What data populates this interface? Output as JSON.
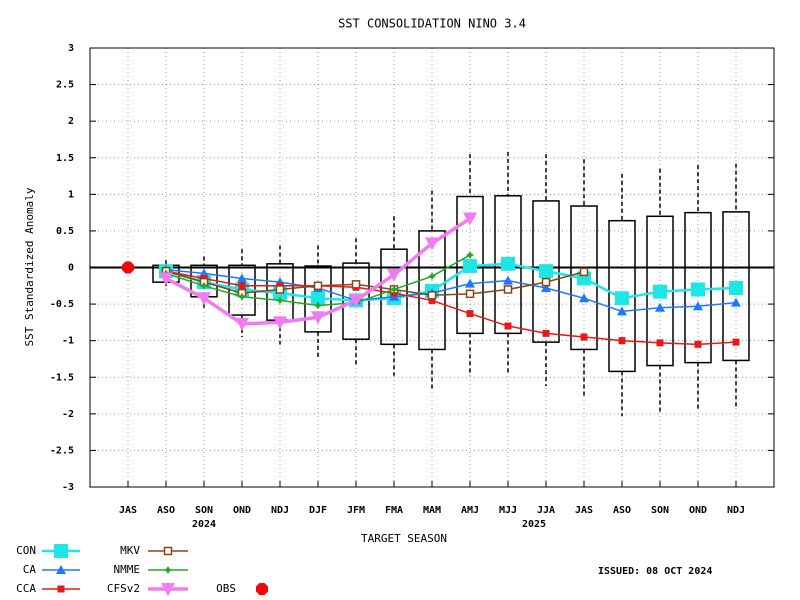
{
  "chart_data": {
    "type": "box_line",
    "title": "SST CONSOLIDATION NINO 3.4",
    "y_label": "SST Standardized Anomaly",
    "x_label": "TARGET SEASON",
    "year_labels": [
      "2024",
      "2025"
    ],
    "issued": "ISSUED: 08 OCT 2024",
    "categories": [
      "JAS",
      "ASO",
      "SON",
      "OND",
      "NDJ",
      "DJF",
      "JFM",
      "FMA",
      "MAM",
      "AMJ",
      "MJJ",
      "JJA",
      "JAS",
      "ASO",
      "SON",
      "OND",
      "NDJ"
    ],
    "ylim": [
      -3,
      3
    ],
    "yticks": [
      -3,
      -2.5,
      -2,
      -1.5,
      -1,
      -0.5,
      0,
      0.5,
      1,
      1.5,
      2,
      2.5,
      3
    ],
    "grid": true,
    "boxes": {
      "high": [
        null,
        0.1,
        0.15,
        0.25,
        0.3,
        0.3,
        0.4,
        0.7,
        1.05,
        1.55,
        1.58,
        1.55,
        1.48,
        1.28,
        1.35,
        1.4,
        1.42
      ],
      "q3": [
        null,
        0.03,
        0.03,
        0.03,
        0.05,
        0.02,
        0.06,
        0.25,
        0.5,
        0.97,
        0.98,
        0.91,
        0.84,
        0.64,
        0.7,
        0.75,
        0.76
      ],
      "q1": [
        null,
        -0.2,
        -0.4,
        -0.65,
        -0.72,
        -0.88,
        -0.98,
        -1.05,
        -1.12,
        -0.9,
        -0.9,
        -1.02,
        -1.12,
        -1.42,
        -1.34,
        -1.3,
        -1.27
      ],
      "low": [
        null,
        -0.3,
        -0.55,
        -0.95,
        -1.05,
        -1.25,
        -1.35,
        -1.48,
        -1.68,
        -1.48,
        -1.45,
        -1.62,
        -1.75,
        -2.03,
        -2.0,
        -1.95,
        -1.92
      ]
    },
    "series": [
      {
        "name": "CON",
        "color": "#1ee6e6",
        "marker": "bigsquare",
        "values": [
          null,
          -0.05,
          -0.2,
          -0.3,
          -0.35,
          -0.42,
          -0.45,
          -0.42,
          -0.32,
          0.02,
          0.05,
          -0.05,
          -0.15,
          -0.42,
          -0.33,
          -0.3,
          -0.28
        ]
      },
      {
        "name": "CA",
        "color": "#1e78ff",
        "marker": "triangle",
        "values": [
          null,
          -0.03,
          -0.08,
          -0.15,
          -0.2,
          -0.28,
          -0.45,
          -0.4,
          -0.35,
          -0.22,
          -0.18,
          -0.28,
          -0.42,
          -0.6,
          -0.55,
          -0.53,
          -0.48
        ]
      },
      {
        "name": "CCA",
        "color": "#e61919",
        "marker": "square",
        "values": [
          null,
          -0.05,
          -0.15,
          -0.25,
          -0.25,
          -0.25,
          -0.27,
          -0.35,
          -0.45,
          -0.63,
          -0.8,
          -0.9,
          -0.95,
          -1.0,
          -1.03,
          -1.05,
          -1.02
        ]
      },
      {
        "name": "MKV",
        "color": "#8b4513",
        "marker": "opensquare",
        "values": [
          null,
          -0.05,
          -0.2,
          -0.35,
          -0.3,
          -0.25,
          -0.23,
          -0.3,
          -0.38,
          -0.36,
          -0.3,
          -0.2,
          -0.06,
          null,
          null,
          null,
          null
        ]
      },
      {
        "name": "NMME",
        "color": "#22aa22",
        "marker": "star",
        "values": [
          null,
          -0.08,
          -0.25,
          -0.4,
          -0.45,
          -0.52,
          -0.48,
          -0.3,
          -0.12,
          0.17,
          null,
          null,
          null,
          null,
          null,
          null,
          null
        ]
      },
      {
        "name": "CFSv2",
        "color": "#f07cf0",
        "marker": "downtriangle",
        "values": [
          null,
          -0.15,
          -0.42,
          -0.77,
          -0.75,
          -0.68,
          -0.45,
          -0.1,
          0.33,
          0.67,
          null,
          null,
          null,
          null,
          null,
          null,
          null
        ]
      },
      {
        "name": "OBS",
        "color": "#ff0000",
        "marker": "octagon",
        "values": [
          0,
          null,
          null,
          null,
          null,
          null,
          null,
          null,
          null,
          null,
          null,
          null,
          null,
          null,
          null,
          null,
          null
        ]
      }
    ]
  }
}
